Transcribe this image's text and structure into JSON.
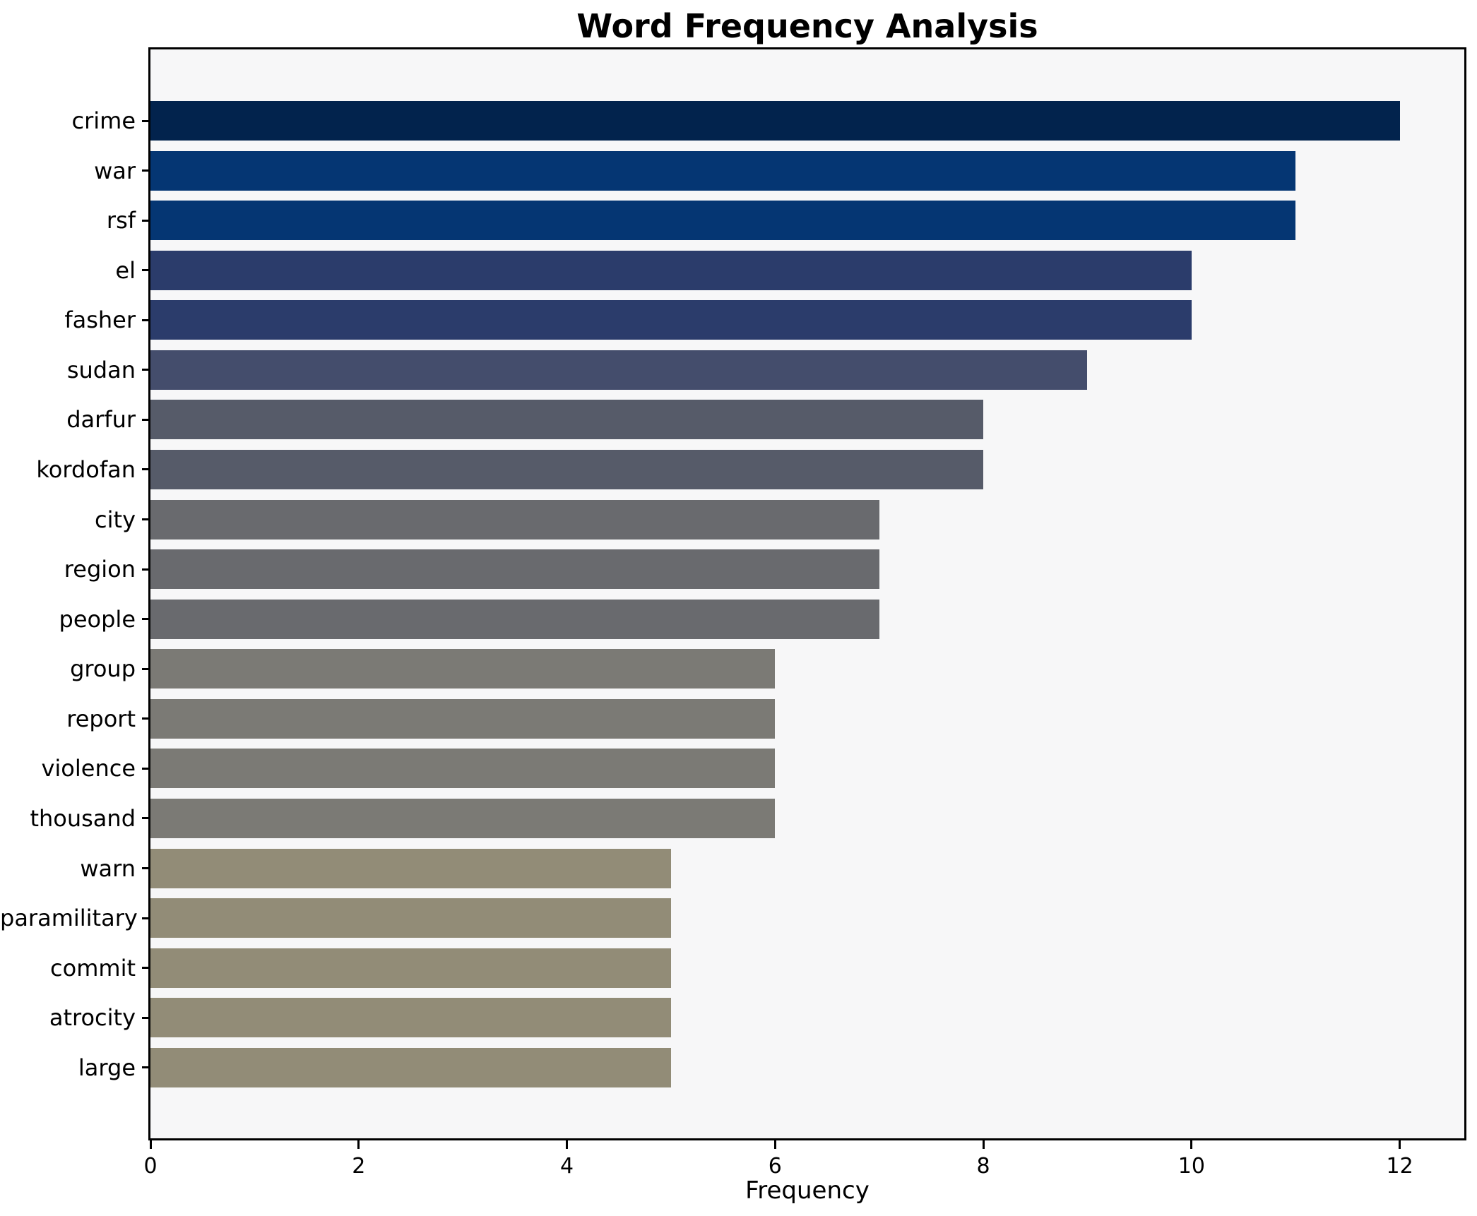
{
  "title": "Word Frequency Analysis",
  "xlabel": "Frequency",
  "colors": {
    "figure_bg": "#ffffff",
    "plot_bg": "#f7f7f8",
    "spine": "#000000",
    "text": "#000000"
  },
  "chart_data": {
    "type": "bar",
    "orientation": "horizontal",
    "title": "Word Frequency Analysis",
    "xlabel": "Frequency",
    "ylabel": "",
    "grid": false,
    "legend": false,
    "xlim": [
      0,
      12.62
    ],
    "xticks": [
      0,
      2,
      4,
      6,
      8,
      10,
      12
    ],
    "categories": [
      "crime",
      "war",
      "rsf",
      "el",
      "fasher",
      "sudan",
      "darfur",
      "kordofan",
      "city",
      "region",
      "people",
      "group",
      "report",
      "violence",
      "thousand",
      "warn",
      "paramilitary",
      "commit",
      "atrocity",
      "large"
    ],
    "values": [
      12,
      11,
      11,
      10,
      10,
      9,
      8,
      8,
      7,
      7,
      7,
      6,
      6,
      6,
      6,
      5,
      5,
      5,
      5,
      5
    ],
    "bar_colors": [
      "#02234d",
      "#053673",
      "#053673",
      "#2b3c6b",
      "#2b3c6b",
      "#444d6c",
      "#565b69",
      "#565b69",
      "#696a6e",
      "#696a6e",
      "#696a6e",
      "#7b7a75",
      "#7b7a75",
      "#7b7a75",
      "#7b7a75",
      "#928c77",
      "#928c77",
      "#928c77",
      "#928c77",
      "#928c77"
    ]
  }
}
